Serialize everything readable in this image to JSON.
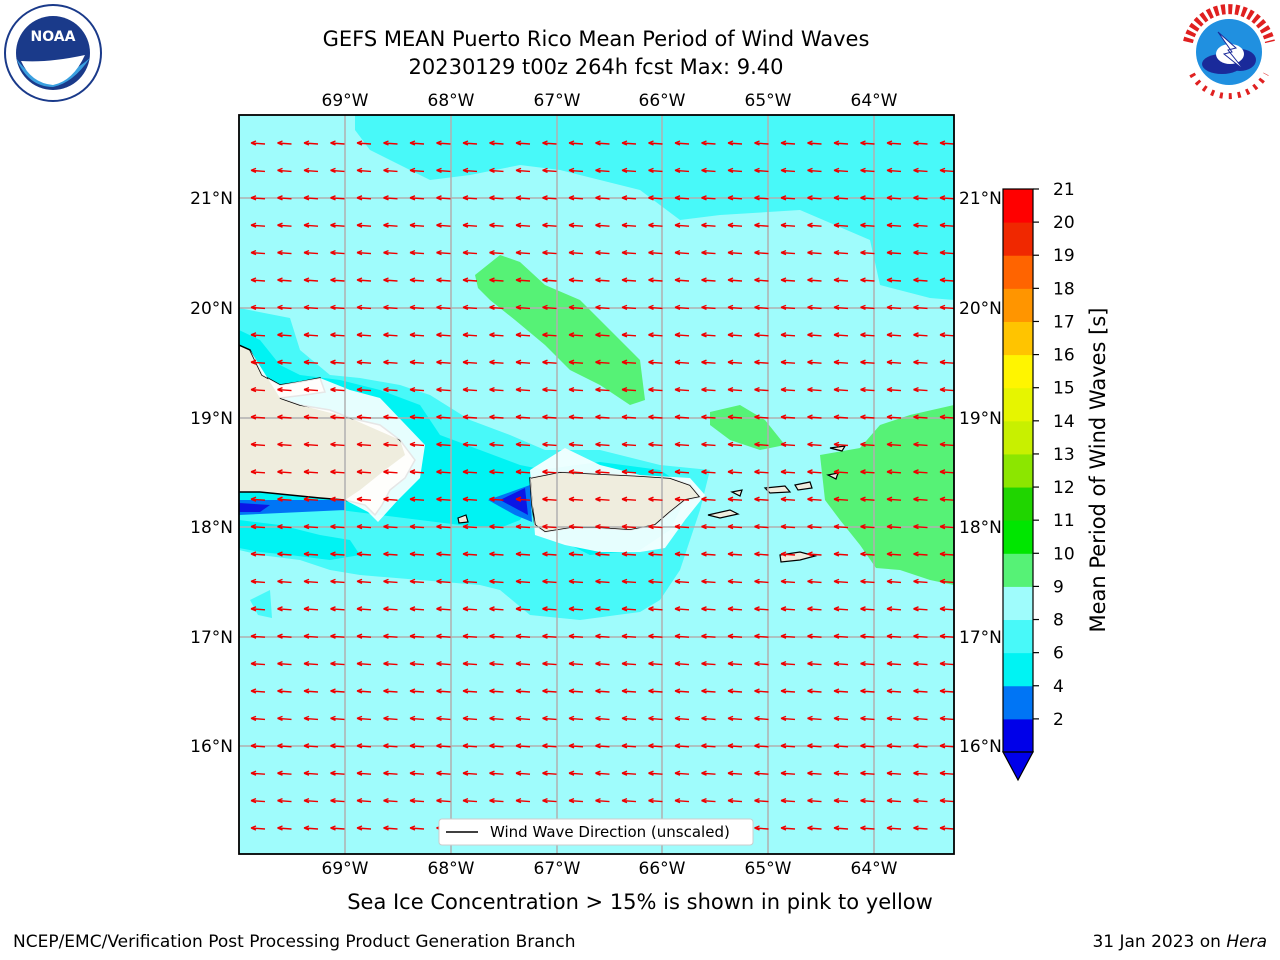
{
  "header": {
    "title_line1": "GEFS MEAN Puerto Rico Mean Period of Wind Waves",
    "title_line2": "20230129 t00z 264h fcst   Max: 9.40"
  },
  "logos": {
    "left_icon": "noaa-logo",
    "right_icon": "national-weather-service-logo",
    "noaa_text": "NOAA",
    "noaa_ring_text": "NATIONAL OCEANIC AND ATMOSPHERIC ADMINISTRATION · U.S. DEPARTMENT OF COMMERCE",
    "nws_ring_text": "NATIONAL WEATHER SERVICE"
  },
  "map": {
    "lon_ticks": [
      "69°W",
      "68°W",
      "67°W",
      "66°W",
      "65°W",
      "64°W"
    ],
    "lat_ticks": [
      "21°N",
      "20°N",
      "19°N",
      "18°N",
      "17°N",
      "16°N"
    ],
    "legend_label": "Wind Wave Direction (unscaled)",
    "colors": {
      "ocean_base": "#9ffcfc",
      "band_8": "#48f9f9",
      "band_6": "#00f3f3",
      "band_4": "#0075f5",
      "band_2": "#0b16e6",
      "green_9": "#56f276",
      "land": "#efedde",
      "arrow": "#ee0000"
    }
  },
  "colorbar": {
    "label": "Mean Period of Wind Waves [s]",
    "ticks": [
      "21",
      "20",
      "19",
      "18",
      "17",
      "16",
      "15",
      "14",
      "13",
      "12",
      "11",
      "10",
      "9",
      "8",
      "6",
      "4",
      "2"
    ],
    "colors": [
      "#0000e9",
      "#0075f5",
      "#00f3f3",
      "#48f9f9",
      "#9ffcfc",
      "#56f276",
      "#00e600",
      "#20d500",
      "#8ce600",
      "#c8f000",
      "#e6f500",
      "#fff500",
      "#ffc400",
      "#ff9500",
      "#ff6400",
      "#f02800",
      "#ff0000"
    ],
    "extend": "min"
  },
  "footer": {
    "note": "Sea Ice Concentration > 15% is shown in pink to yellow",
    "left": "NCEP/EMC/Verification Post Processing Product Generation Branch",
    "right_date": "31 Jan 2023 on ",
    "right_host": "Hera"
  }
}
